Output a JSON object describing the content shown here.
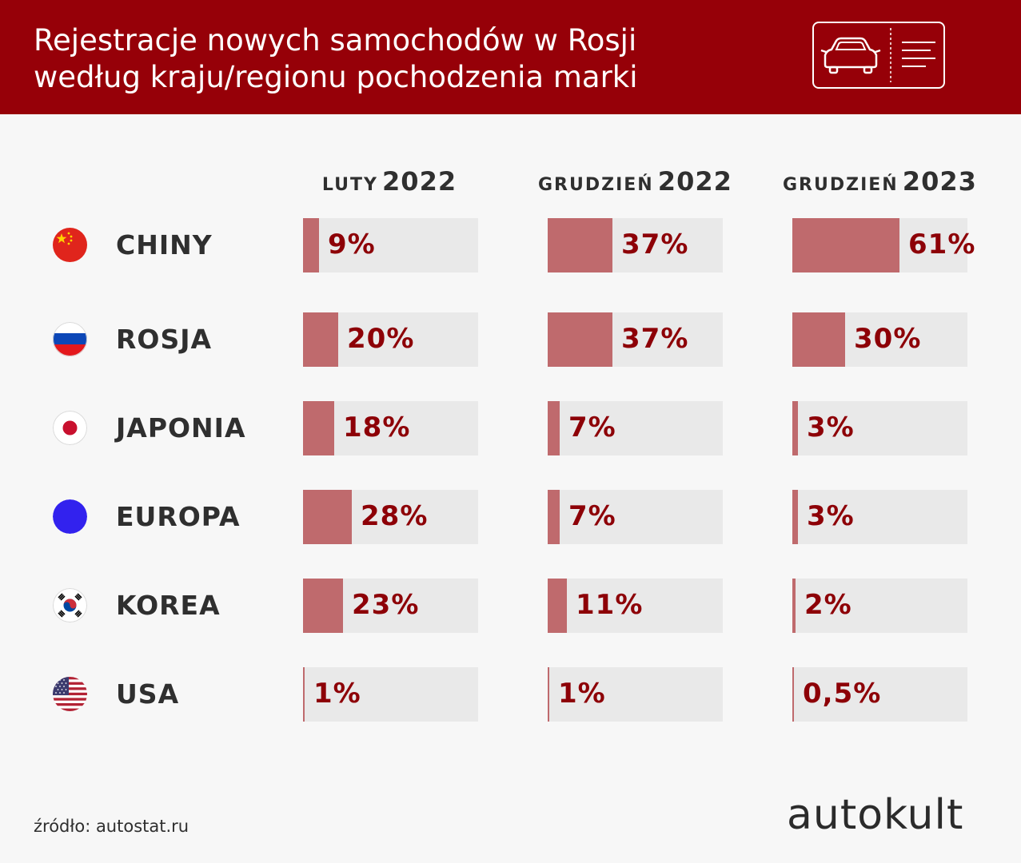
{
  "header": {
    "title_line1": "Rejestracje nowych samochodów w Rosji",
    "title_line2": "według kraju/regionu pochodzenia marki",
    "icon": "car-ticket-icon"
  },
  "colors": {
    "header_bg": "#960008",
    "bar_fill": "#bf6a6d",
    "bar_track": "#e9e9e9",
    "value_text": "#8d0007"
  },
  "chart_data": {
    "type": "table",
    "columns": [
      {
        "month": "LUTY",
        "year": "2022"
      },
      {
        "month": "GRUDZIEŃ",
        "year": "2022"
      },
      {
        "month": "GRUDZIEŃ",
        "year": "2023"
      }
    ],
    "rows": [
      {
        "country": "CHINY",
        "flag": "china-flag-icon",
        "values": [
          9,
          37,
          61
        ],
        "labels": [
          "9%",
          "37%",
          "61%"
        ]
      },
      {
        "country": "ROSJA",
        "flag": "russia-flag-icon",
        "values": [
          20,
          37,
          30
        ],
        "labels": [
          "20%",
          "37%",
          "30%"
        ]
      },
      {
        "country": "JAPONIA",
        "flag": "japan-flag-icon",
        "values": [
          18,
          7,
          3
        ],
        "labels": [
          "18%",
          "7%",
          "3%"
        ]
      },
      {
        "country": "EUROPA",
        "flag": "europe-dot-icon",
        "values": [
          28,
          7,
          3
        ],
        "labels": [
          "28%",
          "7%",
          "3%"
        ]
      },
      {
        "country": "KOREA",
        "flag": "korea-flag-icon",
        "values": [
          23,
          11,
          2
        ],
        "labels": [
          "23%",
          "11%",
          "2%"
        ]
      },
      {
        "country": "USA",
        "flag": "usa-flag-icon",
        "values": [
          1,
          1,
          0.5
        ],
        "labels": [
          "1%",
          "1%",
          "0,5%"
        ]
      }
    ],
    "scale_max": 100
  },
  "footer": {
    "source": "źródło: autostat.ru",
    "brand": "autokult"
  }
}
